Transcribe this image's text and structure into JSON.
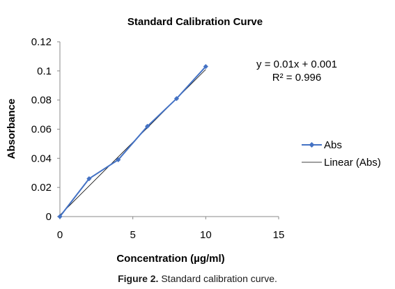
{
  "chart_data": {
    "type": "scatter",
    "title": "Standard Calibration Curve",
    "xlabel": "Concentration (µg/ml)",
    "ylabel": "Absorbance",
    "xlim": [
      0,
      15
    ],
    "ylim": [
      0,
      0.12
    ],
    "x_ticks": [
      "0",
      "5",
      "10",
      "15"
    ],
    "y_ticks": [
      "0",
      "0.02",
      "0.04",
      "0.06",
      "0.08",
      "0.1",
      "0.12"
    ],
    "grid": false,
    "legend_position": "right",
    "series": [
      {
        "name": "Abs",
        "x": [
          0,
          2,
          4,
          6,
          8,
          10
        ],
        "y": [
          0,
          0.026,
          0.039,
          0.062,
          0.081,
          0.103
        ],
        "color": "#4472C4",
        "marker": "diamond"
      }
    ],
    "trendline": {
      "name": "Linear (Abs)",
      "slope": 0.01,
      "intercept": 0.001,
      "x_range": [
        0,
        10
      ],
      "color": "#000000"
    },
    "annotations": {
      "equation": "y = 0.01x + 0.001",
      "r_squared": "R² = 0.996"
    }
  },
  "caption": {
    "label": "Figure 2.",
    "text": "Standard calibration curve."
  }
}
